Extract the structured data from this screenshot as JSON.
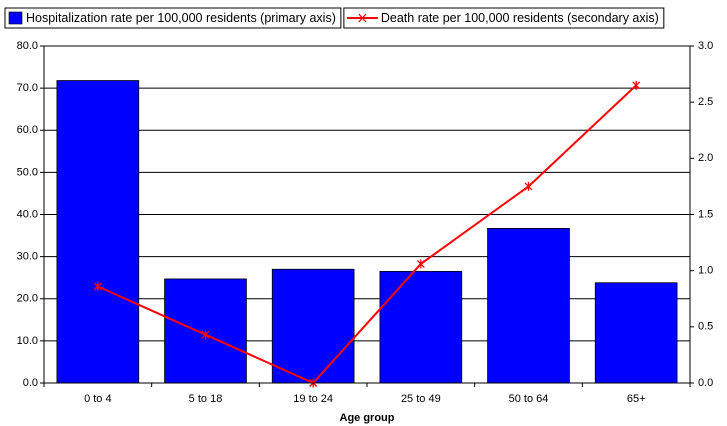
{
  "chart_data": {
    "type": "bar",
    "xlabel": "Age group",
    "categories": [
      "0 to 4",
      "5 to 18",
      "19 to 24",
      "25 to 49",
      "50 to 64",
      "65+"
    ],
    "series": [
      {
        "name": "Hospitalization rate per 100,000 residents (primary axis)",
        "type": "bar",
        "color": "#0000ff",
        "values": [
          71.8,
          24.7,
          27.0,
          26.5,
          36.7,
          23.8
        ]
      },
      {
        "name": "Death rate per 100,000 residents (secondary axis)",
        "type": "line",
        "color": "#ff0000",
        "axis": "y2",
        "values": [
          0.86,
          0.43,
          0.0,
          1.06,
          1.75,
          2.65
        ]
      }
    ],
    "ylim": [
      0,
      80
    ],
    "yticks": [
      {
        "value": 0,
        "label": "0.0"
      },
      {
        "value": 10,
        "label": "10.0"
      },
      {
        "value": 20,
        "label": "20.0"
      },
      {
        "value": 30,
        "label": "30.0"
      },
      {
        "value": 40,
        "label": "40.0"
      },
      {
        "value": 50,
        "label": "50.0"
      },
      {
        "value": 60,
        "label": "60.0"
      },
      {
        "value": 70,
        "label": "70.0"
      },
      {
        "value": 80,
        "label": "80.0"
      }
    ],
    "y2lim": [
      0,
      3
    ],
    "y2ticks": [
      {
        "value": 0,
        "label": "0.0"
      },
      0.5,
      {
        "value": 1,
        "label": "1.0"
      },
      1.5,
      {
        "value": 2,
        "label": "2.0"
      },
      2.5,
      {
        "value": 3,
        "label": "3.0"
      }
    ],
    "grid": true,
    "legend": "top"
  }
}
